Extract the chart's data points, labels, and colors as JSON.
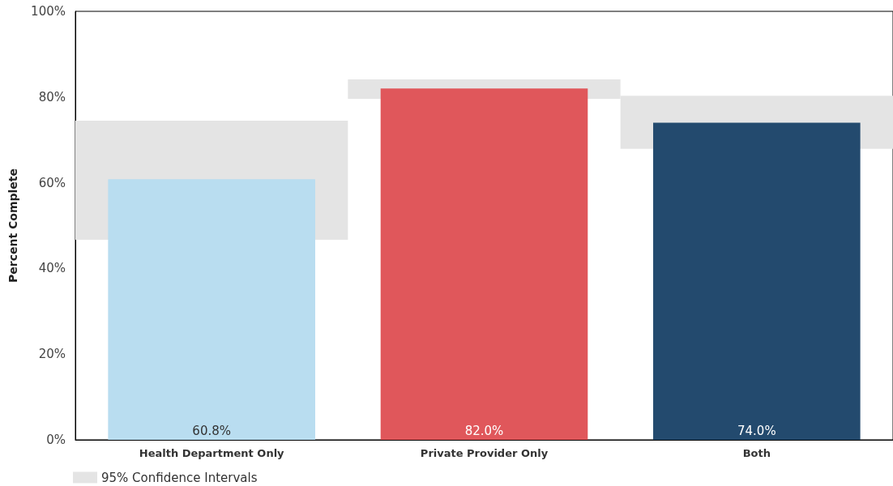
{
  "chart_data": {
    "type": "bar",
    "ylabel": "Percent Complete",
    "categories": [
      "Health Department Only",
      "Private Provider Only",
      "Both"
    ],
    "series": [
      {
        "name": "95% Confidence Intervals",
        "color": "#e4e4e4",
        "base": [
          46.7,
          79.6,
          67.9
        ],
        "values": [
          27.8,
          4.5,
          12.4
        ]
      },
      {
        "colors": [
          "#b9ddf0",
          "#e0575b",
          "#234a6e"
        ],
        "values": [
          60.8,
          82.0,
          74.0
        ],
        "value_labels": [
          "60.8%",
          "82.0%",
          "74.0%"
        ]
      }
    ],
    "ylim": [
      0,
      100
    ],
    "yticks": [
      {
        "value": 0,
        "label": "0%"
      },
      {
        "value": 20,
        "label": "20%"
      },
      {
        "value": 40,
        "label": "40%"
      },
      {
        "value": 60,
        "label": "60%"
      },
      {
        "value": 80,
        "label": "80%"
      },
      {
        "value": 100,
        "label": "100%"
      }
    ],
    "grid": false,
    "legend": "bottom left"
  }
}
